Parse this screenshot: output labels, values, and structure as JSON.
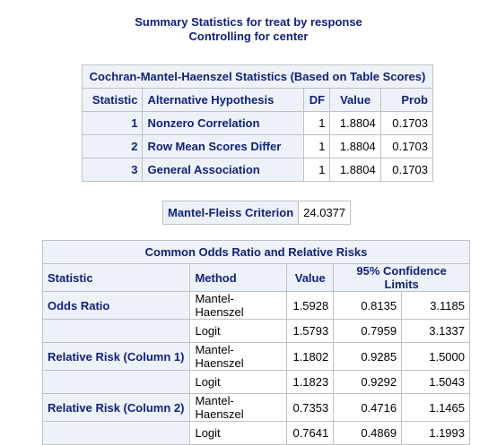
{
  "titles": [
    "Summary Statistics for treat by response",
    "Controlling for center"
  ],
  "cmh": {
    "caption": "Cochran-Mantel-Haenszel Statistics (Based on Table Scores)",
    "headers": [
      "Statistic",
      "Alternative Hypothesis",
      "DF",
      "Value",
      "Prob"
    ],
    "rows": [
      [
        "1",
        "Nonzero Correlation",
        "1",
        "1.8804",
        "0.1703"
      ],
      [
        "2",
        "Row Mean Scores Differ",
        "1",
        "1.8804",
        "0.1703"
      ],
      [
        "3",
        "General Association",
        "1",
        "1.8804",
        "0.1703"
      ]
    ]
  },
  "mantel_fleiss": {
    "label": "Mantel-Fleiss Criterion",
    "value": "24.0377"
  },
  "odds": {
    "caption": "Common Odds Ratio and Relative Risks",
    "headers": [
      "Statistic",
      "Method",
      "Value",
      "95% Confidence Limits"
    ],
    "rows": [
      [
        "Odds Ratio",
        "Mantel-Haenszel",
        "1.5928",
        "0.8135",
        "3.1185"
      ],
      [
        "",
        "Logit",
        "1.5793",
        "0.7959",
        "3.1337"
      ],
      [
        "Relative Risk (Column 1)",
        "Mantel-Haenszel",
        "1.1802",
        "0.9285",
        "1.5000"
      ],
      [
        "",
        "Logit",
        "1.1823",
        "0.9292",
        "1.5043"
      ],
      [
        "Relative Risk (Column 2)",
        "Mantel-Haenszel",
        "0.7353",
        "0.4716",
        "1.1465"
      ],
      [
        "",
        "Logit",
        "0.7641",
        "0.4869",
        "1.1993"
      ]
    ]
  }
}
